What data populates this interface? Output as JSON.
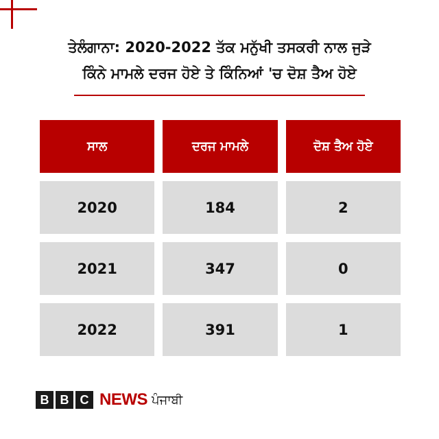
{
  "title_line1": "ਤੇਲੰਗਾਨਾ: 2020-2022 ਤੱਕ ਮਨੁੱਖੀ ਤਸਕਰੀ ਨਾਲ ਜੁੜੇ",
  "title_line2": "ਕਿੰਨੇ ਮਾਮਲੇ ਦਰਜ ਹੋਏ ਤੇ ਕਿੰਨਿਆਂ 'ਚ ਦੋਸ਼ ਤੈਅ ਹੋਏ",
  "table": {
    "headers": [
      "ਸਾਲ",
      "ਦਰਜ ਮਾਮਲੇ",
      "ਦੋਸ਼ ਤੈਅ ਹੋਏ"
    ],
    "rows": [
      [
        "2020",
        "184",
        "2"
      ],
      [
        "2021",
        "347",
        "0"
      ],
      [
        "2022",
        "391",
        "1"
      ]
    ]
  },
  "logo": {
    "letters": [
      "B",
      "B",
      "C"
    ],
    "news": "NEWS",
    "language": "ਪੰਜਾਬੀ"
  },
  "colors": {
    "accent": "#b80000",
    "cell_bg": "#dcdcdc"
  }
}
